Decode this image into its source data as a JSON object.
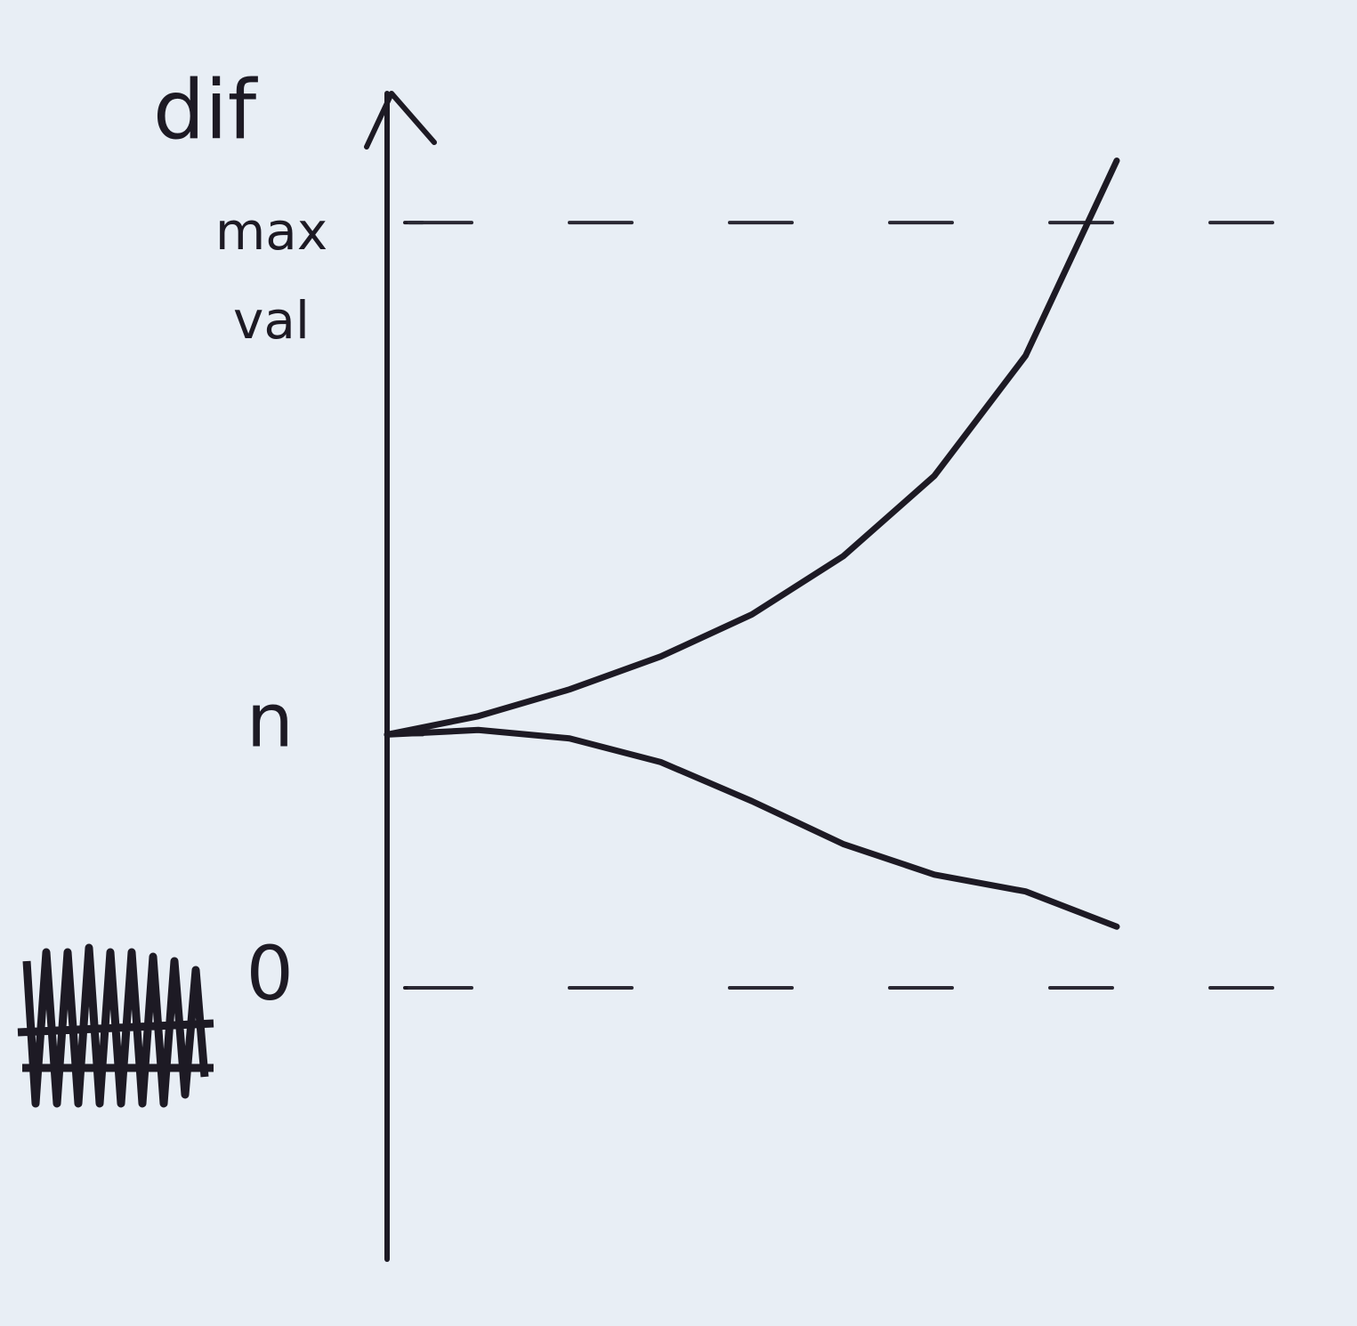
{
  "chart_data": {
    "type": "line",
    "y_label": "dif",
    "x": [
      0,
      1,
      2,
      3,
      4,
      5,
      6,
      7,
      8
    ],
    "xlim": [
      0,
      10
    ],
    "series": [
      {
        "color": "#1d1a24",
        "values": [
          33.1,
          35.5,
          39,
          43.3,
          48.8,
          56.4,
          66.9,
          82.6,
          108.1
        ]
      },
      {
        "color": "#1d1a24",
        "values": [
          33.1,
          33.7,
          32.6,
          29.5,
          24.4,
          18.8,
          14.8,
          12.6,
          8
        ]
      }
    ],
    "ylim": [
      -35,
      117
    ],
    "yticks": [
      0,
      {
        "value": 33.1,
        "label": "n"
      },
      {
        "value": 100,
        "label": "max val"
      }
    ],
    "reference_lines": [
      0,
      100
    ],
    "reference_style": "dashed"
  }
}
